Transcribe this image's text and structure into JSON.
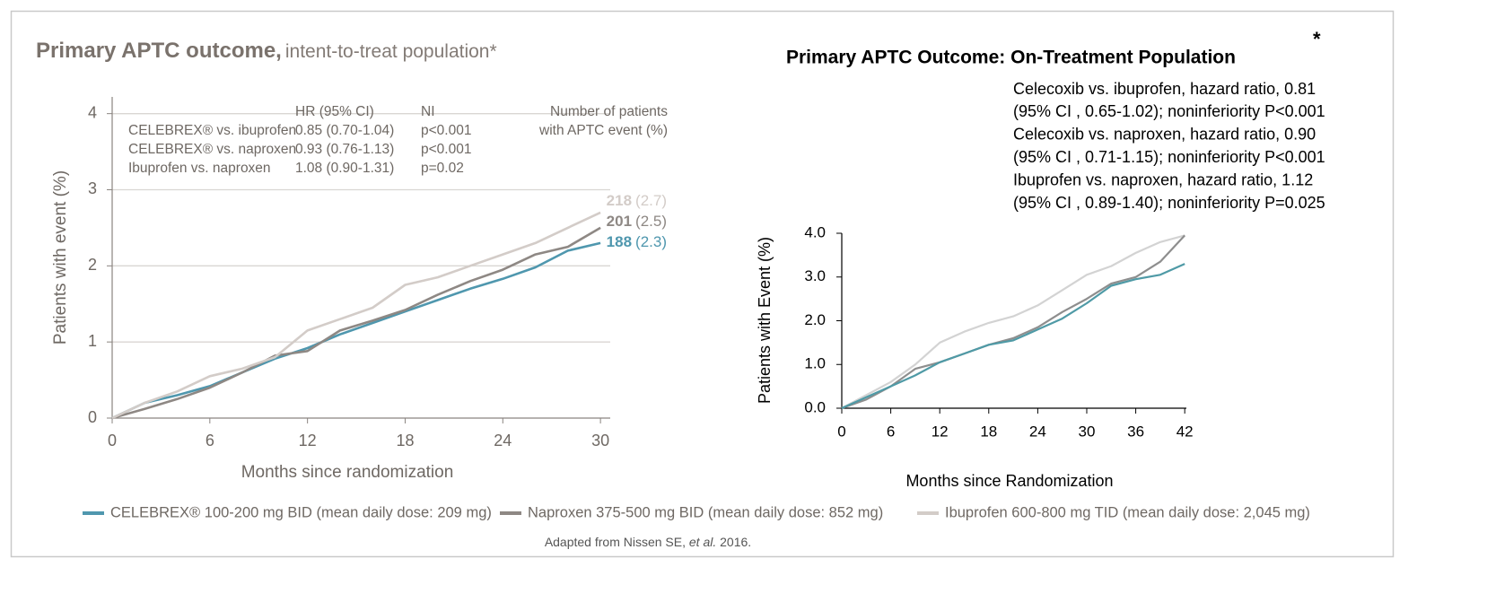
{
  "chart_data": [
    {
      "type": "line",
      "title": "Primary APTC outcome,",
      "subtitle": "intent-to-treat population*",
      "y_label": "Patients with event (%)",
      "x_label": "Months since randomization",
      "xlim": [
        0,
        30.6
      ],
      "xticks": [
        0,
        6,
        12,
        18,
        24,
        30
      ],
      "ylim": [
        0,
        4.22
      ],
      "yticks": [
        0,
        1,
        2,
        3,
        4
      ],
      "grid": true,
      "x": [
        0,
        2,
        4,
        6,
        8,
        10,
        12,
        14,
        16,
        18,
        20,
        22,
        24,
        26,
        28,
        30
      ],
      "series": [
        {
          "name": "CELEBREX® 100-200 mg BID (mean daily dose: 209 mg)",
          "color": "#4f97ae",
          "values": [
            0,
            0.2,
            0.3,
            0.42,
            0.6,
            0.78,
            0.92,
            1.1,
            1.25,
            1.4,
            1.55,
            1.7,
            1.83,
            1.98,
            2.2,
            2.3
          ],
          "events": 188,
          "events_pct_label": "(2.3)"
        },
        {
          "name": "Naproxen 375-500 mg BID (mean daily dose: 852 mg)",
          "color": "#8e8884",
          "values": [
            0,
            0.12,
            0.25,
            0.4,
            0.6,
            0.82,
            0.88,
            1.15,
            1.28,
            1.42,
            1.62,
            1.8,
            1.95,
            2.15,
            2.25,
            2.5
          ],
          "events": 201,
          "events_pct_label": "(2.5)"
        },
        {
          "name": "Ibuprofen 600-800 mg TID (mean daily dose: 2,045 mg)",
          "color": "#d3ccc8",
          "values": [
            0,
            0.2,
            0.35,
            0.55,
            0.65,
            0.8,
            1.15,
            1.3,
            1.45,
            1.75,
            1.85,
            2.0,
            2.15,
            2.3,
            2.5,
            2.7
          ],
          "events": 218,
          "events_pct_label": "(2.7)"
        }
      ],
      "hr_table": {
        "header": [
          "HR (95% CI)",
          "NI"
        ],
        "events_header": [
          "Number of patients",
          "with APTC event (%)"
        ],
        "rows": [
          [
            "CELEBREX® vs. ibuprofen",
            "0.85 (0.70-1.04)",
            "p<0.001"
          ],
          [
            "CELEBREX® vs. naproxen",
            "0.93 (0.76-1.13)",
            "p<0.001"
          ],
          [
            "Ibuprofen vs. naproxen",
            "1.08 (0.90-1.31)",
            "p=0.02"
          ]
        ]
      }
    },
    {
      "type": "line",
      "title": "Primary APTC Outcome: On-Treatment Population",
      "title_mark": "*",
      "notes": [
        "Celecoxib vs. ibuprofen, hazard ratio, 0.81",
        "(95% CI , 0.65-1.02); noninferiority P<0.001",
        "Celecoxib vs. naproxen, hazard ratio, 0.90",
        "(95% CI , 0.71-1.15);  noninferiority P<0.001",
        "Ibuprofen vs. naproxen, hazard ratio, 1.12",
        "(95% CI , 0.89-1.40); noninferiority P=0.025"
      ],
      "y_label": "Patients with Event (%)",
      "x_label": "Months since Randomization",
      "xlim": [
        0,
        42.2
      ],
      "xticks": [
        0,
        6,
        12,
        18,
        24,
        30,
        36,
        42
      ],
      "ylim": [
        0,
        4
      ],
      "yticks": [
        {
          "value": 0,
          "label": "0.0"
        },
        {
          "value": 1,
          "label": "1.0"
        },
        {
          "value": 2,
          "label": "2.0"
        },
        {
          "value": 3,
          "label": "3.0"
        },
        {
          "value": 4,
          "label": "4.0"
        }
      ],
      "grid": false,
      "x": [
        0,
        3,
        6,
        9,
        12,
        15,
        18,
        21,
        24,
        27,
        30,
        33,
        36,
        39,
        42
      ],
      "series": [
        {
          "color": "#d3d3d3",
          "values": [
            0,
            0.3,
            0.6,
            1.0,
            1.5,
            1.75,
            1.95,
            2.1,
            2.35,
            2.7,
            3.05,
            3.25,
            3.55,
            3.8,
            3.95
          ]
        },
        {
          "color": "#8e8e8e",
          "values": [
            0,
            0.2,
            0.5,
            0.9,
            1.05,
            1.25,
            1.45,
            1.6,
            1.85,
            2.2,
            2.5,
            2.85,
            3.0,
            3.35,
            3.95
          ]
        },
        {
          "color": "#4f9aa6",
          "values": [
            0,
            0.25,
            0.5,
            0.75,
            1.05,
            1.25,
            1.45,
            1.55,
            1.8,
            2.05,
            2.4,
            2.8,
            2.95,
            3.05,
            3.3
          ]
        }
      ]
    }
  ],
  "source": [
    "Adapted from Nissen SE, ",
    "et al.",
    " 2016."
  ]
}
